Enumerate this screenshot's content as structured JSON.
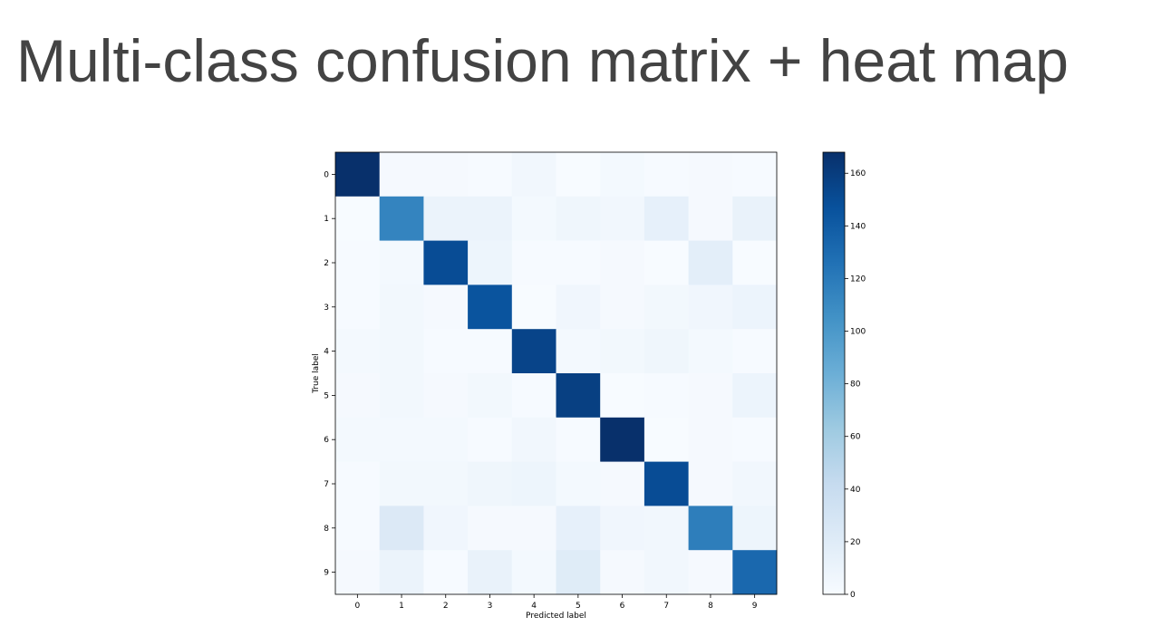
{
  "slide": {
    "title": "Multi-class confusion matrix + heat map"
  },
  "chart_data": {
    "type": "heatmap",
    "title": "",
    "xlabel": "Predicted label",
    "ylabel": "True label",
    "x_categories": [
      "0",
      "1",
      "2",
      "3",
      "4",
      "5",
      "6",
      "7",
      "8",
      "9"
    ],
    "y_categories": [
      "0",
      "1",
      "2",
      "3",
      "4",
      "5",
      "6",
      "7",
      "8",
      "9"
    ],
    "colormap": "Blues",
    "colors": {
      "low": "#f7fbff",
      "high": "#08306b"
    },
    "colorbar": {
      "range": [
        0,
        168
      ],
      "ticks": [
        0,
        20,
        40,
        60,
        80,
        100,
        120,
        140,
        160
      ]
    },
    "values": [
      [
        168,
        2,
        2,
        1,
        5,
        0,
        3,
        1,
        2,
        1
      ],
      [
        0,
        114,
        10,
        10,
        3,
        7,
        5,
        14,
        2,
        12
      ],
      [
        1,
        3,
        150,
        8,
        1,
        1,
        2,
        0,
        17,
        0
      ],
      [
        1,
        4,
        2,
        145,
        0,
        6,
        2,
        4,
        6,
        9
      ],
      [
        3,
        4,
        1,
        1,
        155,
        3,
        4,
        7,
        3,
        1
      ],
      [
        2,
        4,
        2,
        4,
        1,
        158,
        0,
        1,
        2,
        9
      ],
      [
        3,
        3,
        3,
        1,
        5,
        1,
        168,
        0,
        2,
        1
      ],
      [
        1,
        4,
        4,
        7,
        8,
        3,
        2,
        150,
        2,
        5
      ],
      [
        1,
        23,
        6,
        2,
        2,
        14,
        6,
        5,
        118,
        8
      ],
      [
        2,
        10,
        1,
        12,
        3,
        20,
        2,
        5,
        2,
        132
      ]
    ]
  }
}
